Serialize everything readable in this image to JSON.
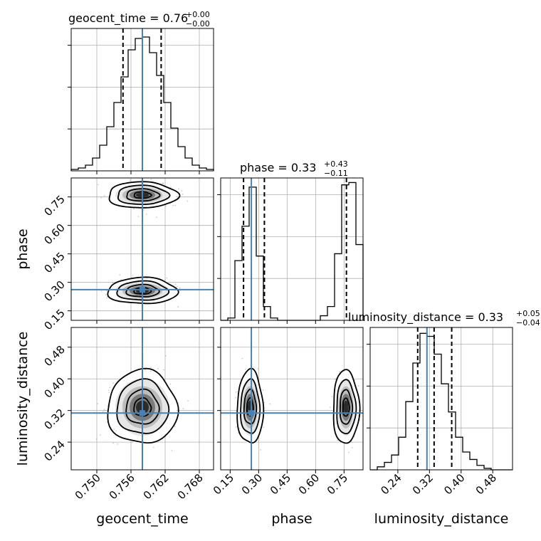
{
  "chart_data": {
    "type": "corner",
    "parameters": [
      {
        "name": "geocent_time",
        "title": {
          "main": "geocent_time = 0.76",
          "sup": "+0.00",
          "sub": "−0.00"
        },
        "range": [
          0.7455,
          0.7705
        ],
        "ticks": [
          0.75,
          0.756,
          0.762,
          0.768
        ],
        "tick_labels": [
          "0.750",
          "0.756",
          "0.762",
          "0.768"
        ],
        "truth": 0.758,
        "quantiles": [
          0.7546,
          0.758,
          0.7613
        ],
        "hist": {
          "edges_start": 0.7455,
          "bin_width": 0.00125,
          "counts": [
            1,
            2,
            4,
            9,
            18,
            31,
            48,
            66,
            85,
            93,
            94,
            83,
            67,
            48,
            30,
            17,
            9,
            4,
            2,
            1
          ],
          "ymax": 100
        }
      },
      {
        "name": "phase",
        "title": {
          "main": "phase = 0.33",
          "sup": "+0.43",
          "sub": "−0.11"
        },
        "range": [
          0.1,
          0.85
        ],
        "ticks": [
          0.15,
          0.3,
          0.45,
          0.6,
          0.75
        ],
        "tick_labels": [
          "0.15",
          "0.30",
          "0.45",
          "0.60",
          "0.75"
        ],
        "truth": 0.2616,
        "quantiles": [
          0.2205,
          0.3303,
          0.7625
        ],
        "hist": {
          "edges_start": 0.1,
          "bin_width": 0.0375,
          "counts": [
            0,
            1,
            26,
            41,
            58,
            28,
            6,
            1,
            0,
            0,
            0,
            0,
            0,
            0,
            2,
            6,
            29,
            59,
            60,
            33
          ],
          "ymax": 62
        }
      },
      {
        "name": "luminosity_distance",
        "title": {
          "main": "luminosity_distance = 0.33",
          "sup": "+0.05",
          "sub": "−0.04"
        },
        "range": [
          0.17,
          0.53
        ],
        "ticks": [
          0.24,
          0.32,
          0.4,
          0.48
        ],
        "tick_labels": [
          "0.24",
          "0.32",
          "0.40",
          "0.48"
        ],
        "truth": 0.3136,
        "quantiles": [
          0.2902,
          0.3317,
          0.3762
        ],
        "hist": {
          "edges_start": 0.17,
          "bin_width": 0.018,
          "counts": [
            0,
            2,
            5,
            10,
            22,
            46,
            72,
            92,
            90,
            78,
            58,
            39,
            22,
            12,
            7,
            3,
            1,
            0,
            0,
            0
          ],
          "ymax": 96
        }
      }
    ],
    "modes": {
      "phase": [
        {
          "center": 0.255,
          "sd": 0.028,
          "weight": 0.5
        },
        {
          "center": 0.76,
          "sd": 0.028,
          "weight": 0.5
        }
      ],
      "geocent_time": {
        "center": 0.758,
        "sd": 0.0025
      },
      "luminosity_distance": {
        "center": 0.328,
        "sd": 0.038
      }
    },
    "colors": {
      "truth": "#4682b4",
      "contour": "#000000",
      "grid": "#b0b0b0",
      "samples": "#a0a0a0"
    },
    "grid": true
  }
}
